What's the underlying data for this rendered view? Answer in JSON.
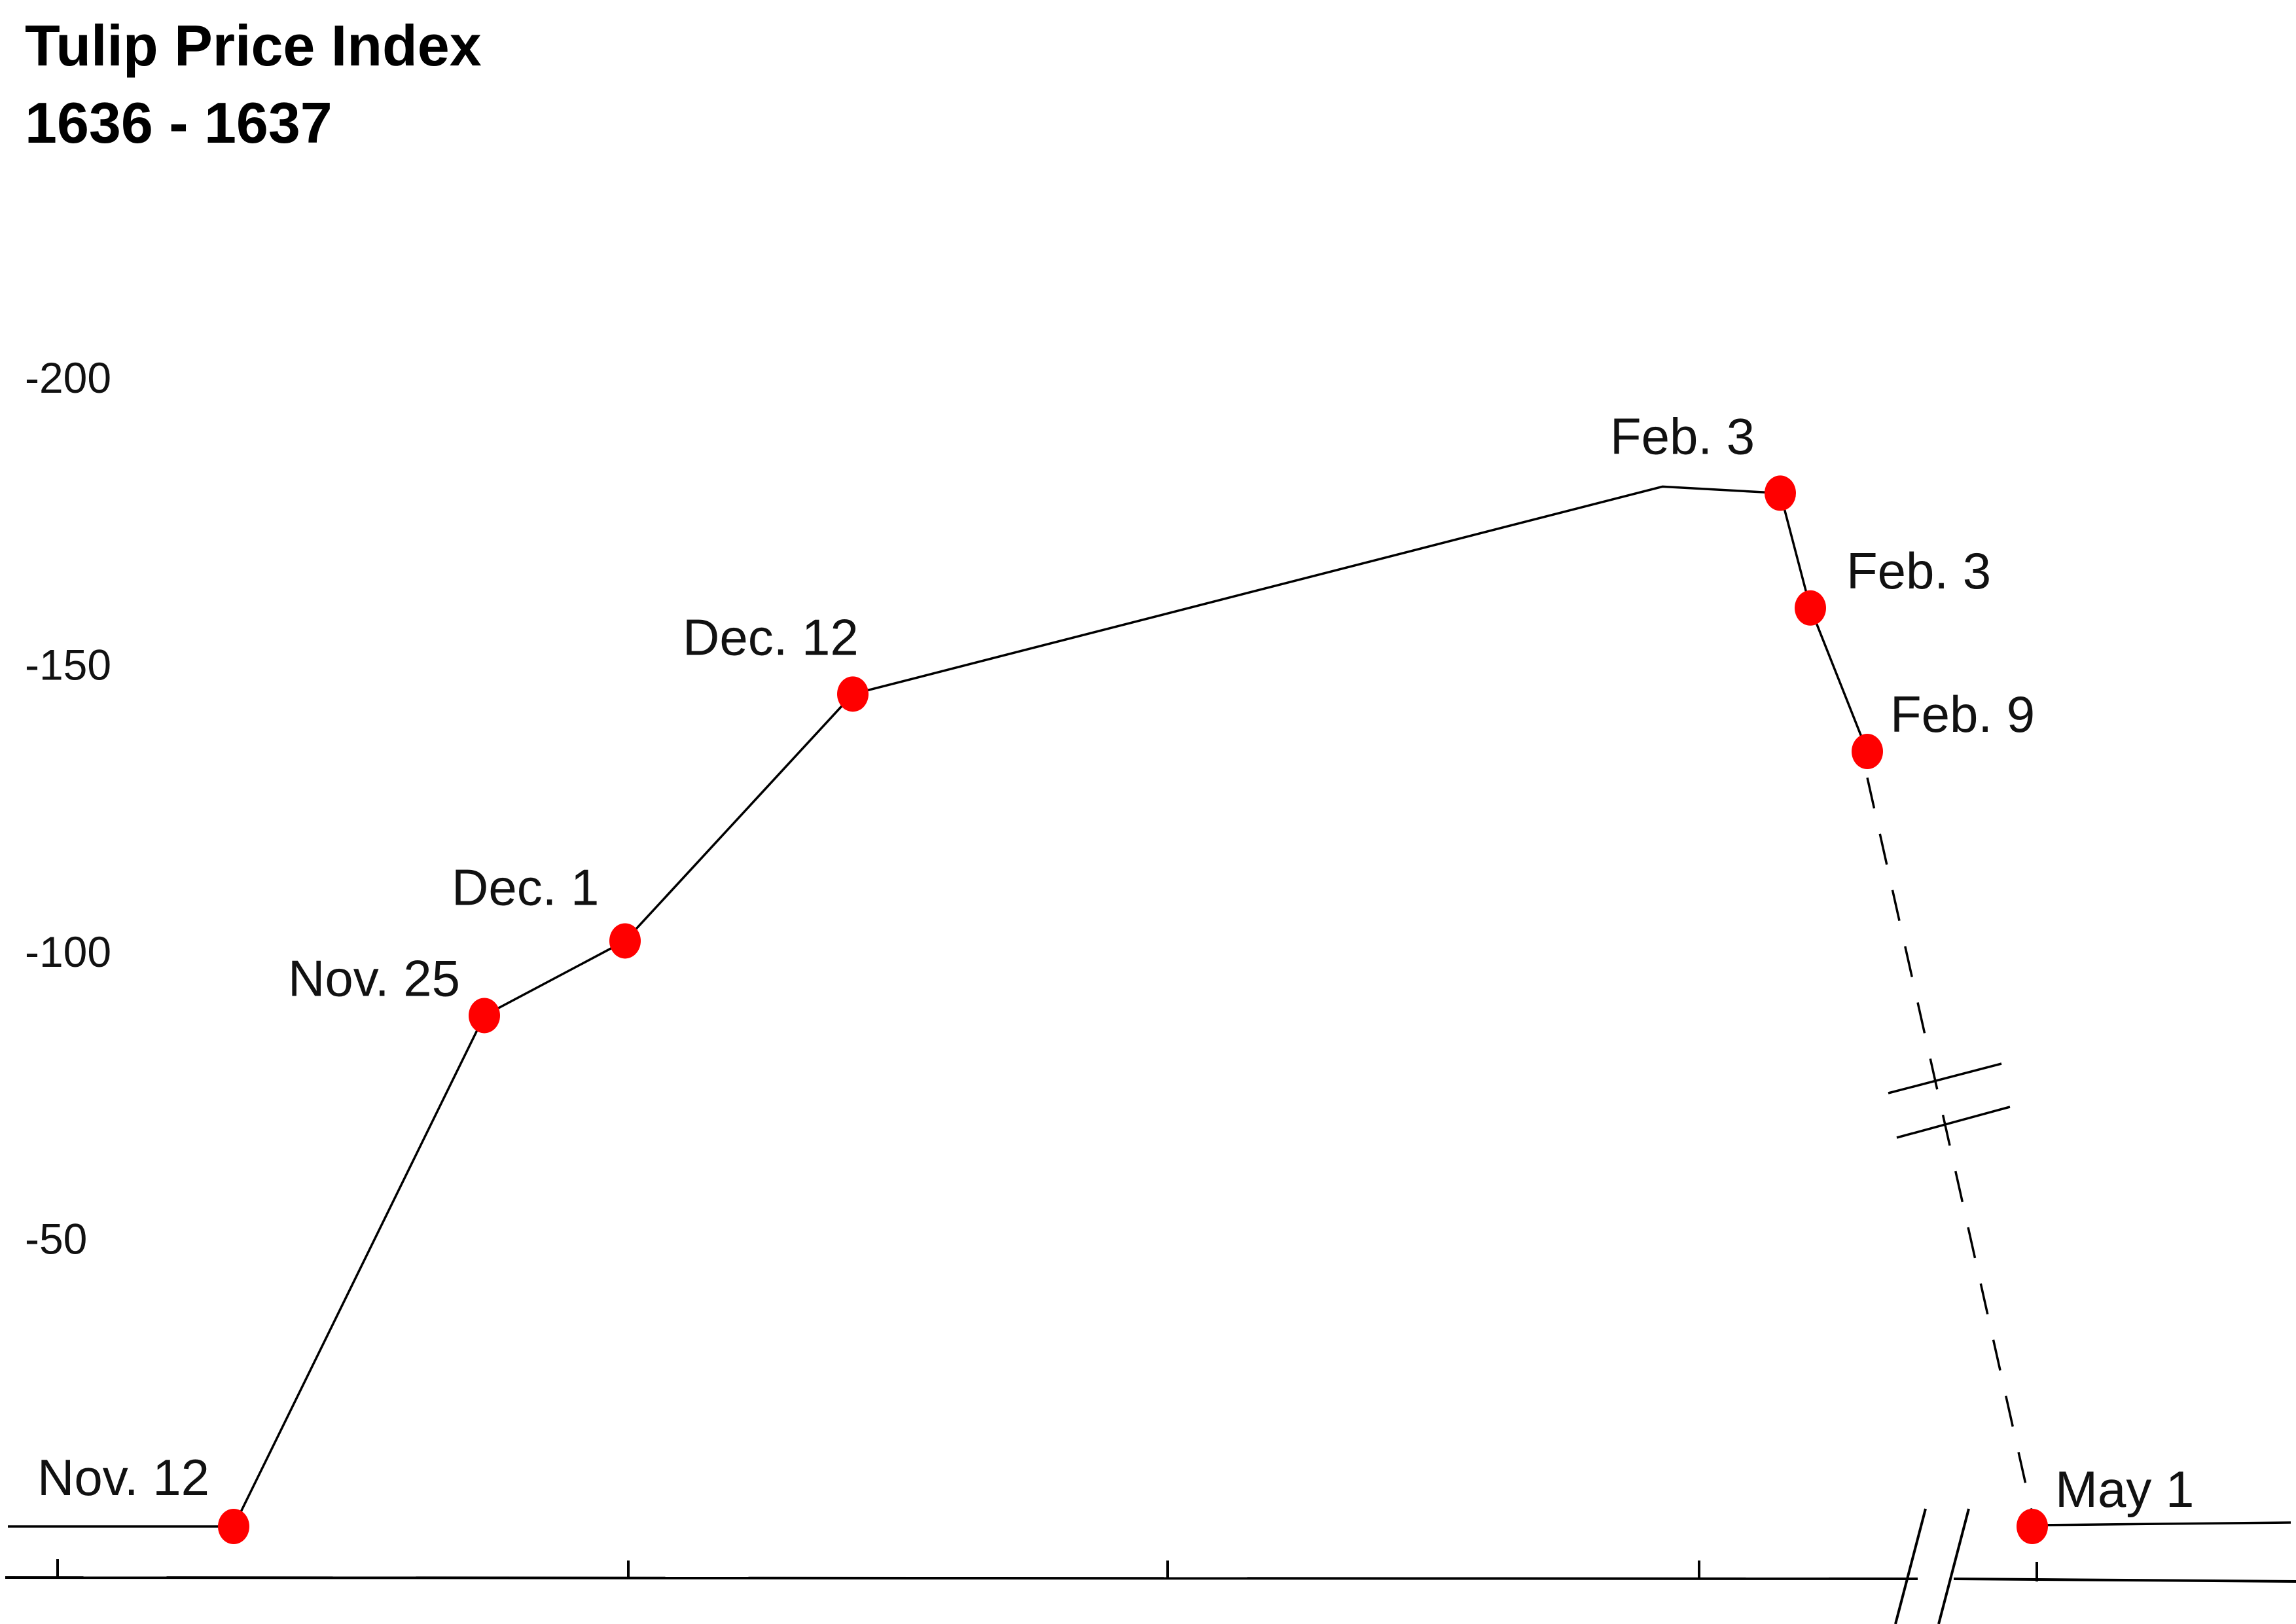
{
  "chart_data": {
    "type": "line",
    "title": "Tulip Price Index",
    "subtitle": "1636 - 1637",
    "xlabel": "",
    "ylabel": "",
    "ylim": [
      0,
      220
    ],
    "yticks": [
      50,
      100,
      150,
      200
    ],
    "ytick_labels": [
      "-50",
      "-100",
      "-150",
      "-200"
    ],
    "grid": false,
    "legend": "none",
    "series": [
      {
        "points": [
          {
            "x": "1636-11-12",
            "y": 0,
            "label": "Nov. 12"
          },
          {
            "x": "1636-11-25",
            "y": 89,
            "label": "Nov. 25"
          },
          {
            "x": "1636-12-01",
            "y": 102,
            "label": "Dec. 1"
          },
          {
            "x": "1636-12-12",
            "y": 145,
            "label": "Dec. 12"
          },
          {
            "x": "1637-02-03",
            "y": 180,
            "label": "Feb. 3"
          },
          {
            "x": "1637-02-03",
            "y": 160,
            "label": "Feb. 3"
          },
          {
            "x": "1637-02-09",
            "y": 135,
            "label": "Feb. 9"
          },
          {
            "x": "1637-05-01",
            "y": 0,
            "label": "May 1"
          }
        ],
        "dashed_from_index": 6
      }
    ],
    "colors": {
      "marker": "#ff0000",
      "line": "#000000"
    }
  }
}
